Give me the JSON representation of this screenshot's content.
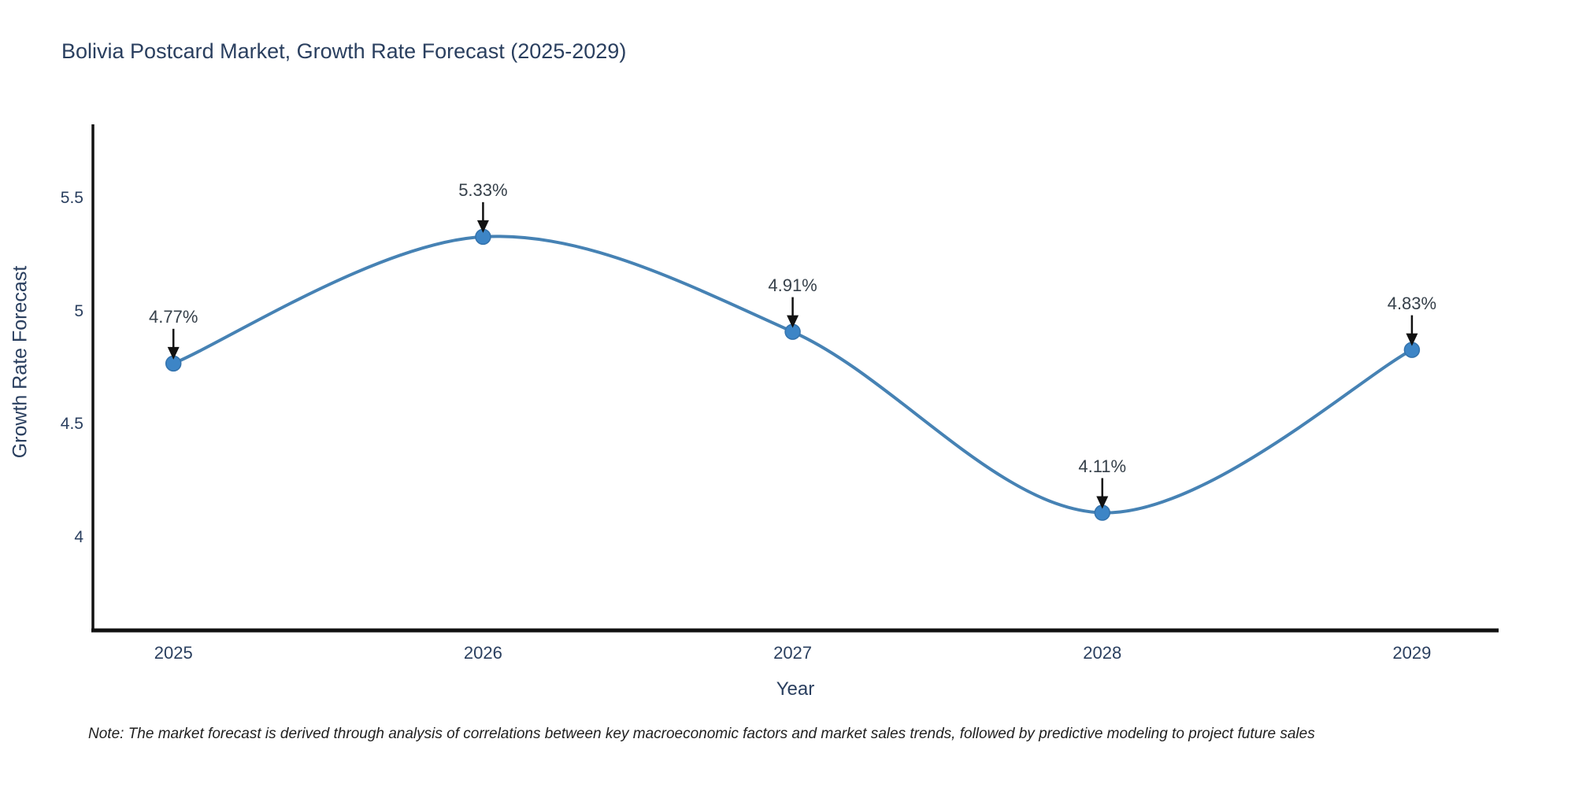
{
  "title": "Bolivia Postcard Market, Growth Rate Forecast (2025-2029)",
  "note": "Note: The market forecast is derived through analysis of correlations between key macroeconomic factors and market sales trends, followed by predictive modeling to project future sales",
  "chart_data": {
    "type": "line",
    "title": "Bolivia Postcard Market, Growth Rate Forecast (2025-2029)",
    "xlabel": "Year",
    "ylabel": "Growth Rate Forecast",
    "x": [
      2025,
      2026,
      2027,
      2028,
      2029
    ],
    "values": [
      4.77,
      5.33,
      4.91,
      4.11,
      4.83
    ],
    "point_labels": [
      "4.77%",
      "5.33%",
      "4.91%",
      "4.11%",
      "4.83%"
    ],
    "x_tick_labels": [
      "2025",
      "2026",
      "2027",
      "2028",
      "2029"
    ],
    "y_ticks": [
      {
        "value": 4.0,
        "label": "4"
      },
      {
        "value": 4.5,
        "label": "4.5"
      },
      {
        "value": 5.0,
        "label": "5"
      },
      {
        "value": 5.5,
        "label": "5.5"
      }
    ],
    "xlim": [
      2024.74,
      2029.28
    ],
    "ylim": [
      3.59,
      5.82
    ],
    "line_shape": "spline",
    "grid": false,
    "legend": false,
    "annotations_have_arrows": true,
    "colors": {
      "line": "#4682b4",
      "marker": "#3d85c6",
      "marker_edge": "#3473ad",
      "axis_line": "#111111",
      "arrow": "#111111",
      "title_text": "#2a3f5f",
      "tick_text": "#2a3f5f",
      "annotation_text": "#36404a",
      "background": "#ffffff"
    }
  }
}
